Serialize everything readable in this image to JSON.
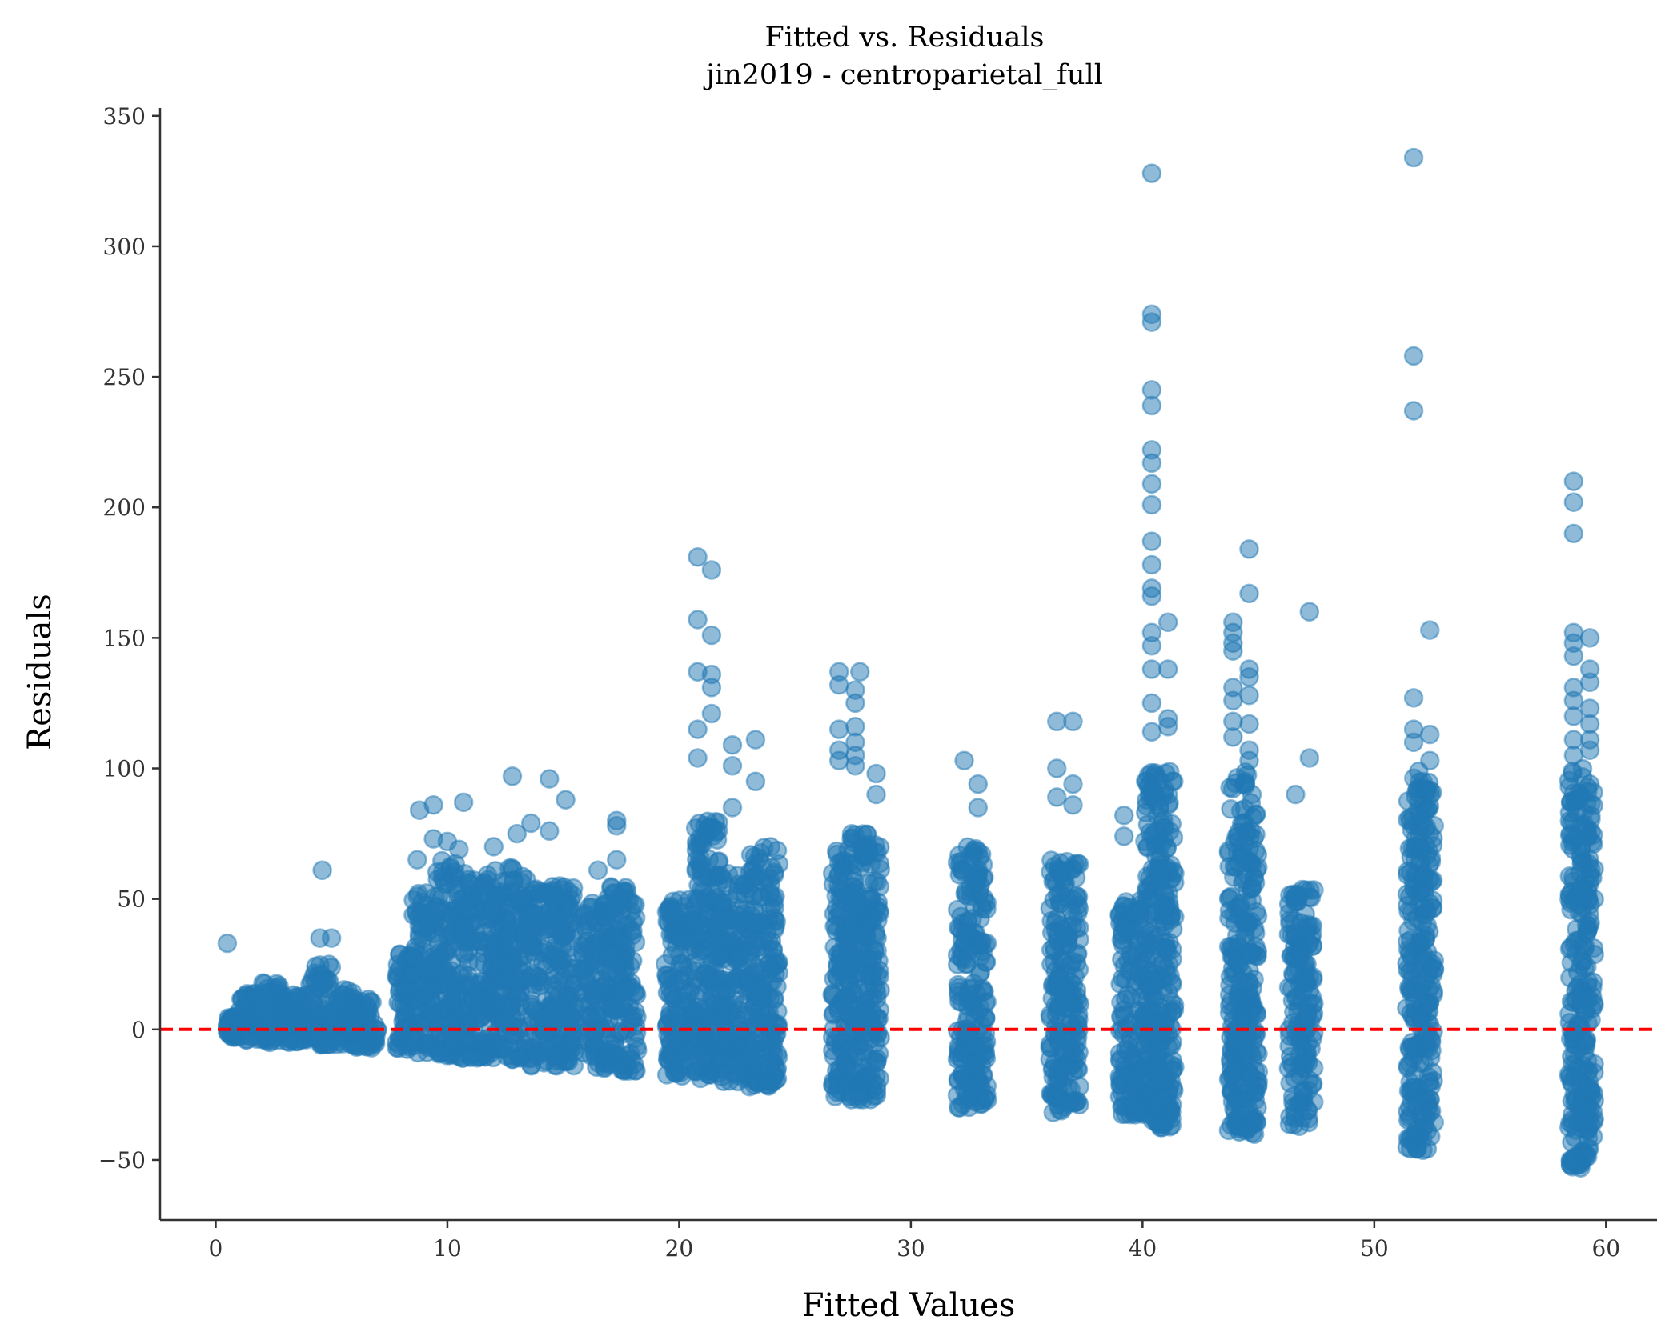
{
  "chart_data": {
    "type": "scatter",
    "title": "Fitted vs. Residuals",
    "subtitle": "jin2019 - centroparietal_full",
    "xlabel": "Fitted Values",
    "ylabel": "Residuals",
    "xlim": [
      -2.4,
      62.2
    ],
    "ylim": [
      -73,
      353
    ],
    "xticks": [
      0,
      10,
      20,
      30,
      40,
      50,
      60
    ],
    "yticks": [
      -50,
      0,
      50,
      100,
      150,
      200,
      250,
      300,
      350
    ],
    "xtick_labels": [
      "0",
      "10",
      "20",
      "30",
      "40",
      "50",
      "60"
    ],
    "ytick_labels": [
      "−50",
      "0",
      "50",
      "100",
      "150",
      "200",
      "250",
      "300",
      "350"
    ],
    "grid": false,
    "reference_line": {
      "y": 0,
      "color": "#ff0000",
      "style": "dashed"
    },
    "point_color": "#1f77b4",
    "point_alpha": 0.5,
    "clusters": [
      {
        "x": [
          0.5,
          1.0
        ],
        "ylow": -3,
        "yhigh": 5
      },
      {
        "x": [
          1.0,
          2.0
        ],
        "ylow": -4,
        "yhigh": 14
      },
      {
        "x": [
          2.0,
          3.0
        ],
        "ylow": -5,
        "yhigh": 18
      },
      {
        "x": [
          3.0,
          4.0
        ],
        "ylow": -5,
        "yhigh": 14
      },
      {
        "x": [
          4.0,
          5.0
        ],
        "ylow": -6,
        "yhigh": 25
      },
      {
        "x": [
          5.0,
          6.0
        ],
        "ylow": -6,
        "yhigh": 16
      },
      {
        "x": [
          6.0,
          7.0
        ],
        "ylow": -7,
        "yhigh": 13
      },
      {
        "x": [
          7.8,
          8.5
        ],
        "ylow": -8,
        "yhigh": 30
      },
      {
        "x": [
          8.5,
          9.5
        ],
        "ylow": -9,
        "yhigh": 55
      },
      {
        "x": [
          9.5,
          10.5
        ],
        "ylow": -10,
        "yhigh": 65
      },
      {
        "x": [
          10.5,
          12.0
        ],
        "ylow": -11,
        "yhigh": 60
      },
      {
        "x": [
          12.0,
          13.5
        ],
        "ylow": -12,
        "yhigh": 62
      },
      {
        "x": [
          13.5,
          15.5
        ],
        "ylow": -14,
        "yhigh": 55
      },
      {
        "x": [
          15.8,
          16.8
        ],
        "ylow": -15,
        "yhigh": 50
      },
      {
        "x": [
          16.8,
          18.2
        ],
        "ylow": -16,
        "yhigh": 55
      },
      {
        "x": [
          19.4,
          20.6
        ],
        "ylow": -18,
        "yhigh": 50
      },
      {
        "x": [
          20.6,
          21.8
        ],
        "ylow": -19,
        "yhigh": 80
      },
      {
        "x": [
          21.8,
          23.0
        ],
        "ylow": -20,
        "yhigh": 60
      },
      {
        "x": [
          23.0,
          24.3
        ],
        "ylow": -22,
        "yhigh": 70
      },
      {
        "x": [
          26.6,
          27.4
        ],
        "ylow": -26,
        "yhigh": 70
      },
      {
        "x": [
          27.4,
          28.7
        ],
        "ylow": -27,
        "yhigh": 75
      },
      {
        "x": [
          32.0,
          33.3
        ],
        "ylow": -30,
        "yhigh": 70
      },
      {
        "x": [
          36.0,
          37.3
        ],
        "ylow": -32,
        "yhigh": 65
      },
      {
        "x": [
          39.0,
          40.1
        ],
        "ylow": -33,
        "yhigh": 50
      },
      {
        "x": [
          40.1,
          41.4
        ],
        "ylow": -38,
        "yhigh": 100
      },
      {
        "x": [
          43.7,
          44.6
        ],
        "ylow": -40,
        "yhigh": 100
      },
      {
        "x": [
          44.6,
          45.0
        ],
        "ylow": -41,
        "yhigh": 90
      },
      {
        "x": [
          46.3,
          47.4
        ],
        "ylow": -38,
        "yhigh": 55
      },
      {
        "x": [
          51.4,
          52.0
        ],
        "ylow": -46,
        "yhigh": 100
      },
      {
        "x": [
          52.0,
          52.6
        ],
        "ylow": -47,
        "yhigh": 95
      },
      {
        "x": [
          58.4,
          59.0
        ],
        "ylow": -53,
        "yhigh": 100
      },
      {
        "x": [
          59.0,
          59.5
        ],
        "ylow": -50,
        "yhigh": 95
      }
    ],
    "outliers": [
      [
        0.5,
        33
      ],
      [
        4.5,
        35
      ],
      [
        4.6,
        61
      ],
      [
        5.0,
        35
      ],
      [
        8.7,
        65
      ],
      [
        8.8,
        84
      ],
      [
        9.4,
        86
      ],
      [
        9.4,
        73
      ],
      [
        10.0,
        72
      ],
      [
        10.7,
        87
      ],
      [
        10.5,
        69
      ],
      [
        12.0,
        70
      ],
      [
        12.8,
        97
      ],
      [
        13.0,
        75
      ],
      [
        13.6,
        79
      ],
      [
        14.4,
        96
      ],
      [
        14.4,
        76
      ],
      [
        15.1,
        88
      ],
      [
        16.5,
        61
      ],
      [
        17.3,
        80
      ],
      [
        17.3,
        78
      ],
      [
        17.3,
        65
      ],
      [
        20.8,
        181
      ],
      [
        20.8,
        157
      ],
      [
        20.8,
        137
      ],
      [
        20.8,
        115
      ],
      [
        20.8,
        104
      ],
      [
        21.4,
        176
      ],
      [
        21.4,
        151
      ],
      [
        21.4,
        136
      ],
      [
        21.4,
        131
      ],
      [
        21.4,
        121
      ],
      [
        22.3,
        109
      ],
      [
        22.3,
        101
      ],
      [
        22.3,
        85
      ],
      [
        23.3,
        111
      ],
      [
        23.3,
        95
      ],
      [
        24.0,
        62
      ],
      [
        26.9,
        137
      ],
      [
        26.9,
        132
      ],
      [
        26.9,
        115
      ],
      [
        26.9,
        107
      ],
      [
        26.9,
        103
      ],
      [
        27.6,
        130
      ],
      [
        27.6,
        125
      ],
      [
        27.6,
        116
      ],
      [
        27.6,
        110
      ],
      [
        27.6,
        105
      ],
      [
        27.6,
        101
      ],
      [
        27.8,
        137
      ],
      [
        28.5,
        98
      ],
      [
        28.5,
        90
      ],
      [
        32.3,
        103
      ],
      [
        32.9,
        94
      ],
      [
        32.9,
        85
      ],
      [
        36.3,
        118
      ],
      [
        36.3,
        100
      ],
      [
        36.3,
        89
      ],
      [
        37.0,
        118
      ],
      [
        37.0,
        94
      ],
      [
        37.0,
        86
      ],
      [
        39.2,
        82
      ],
      [
        39.2,
        74
      ],
      [
        40.4,
        328
      ],
      [
        40.4,
        274
      ],
      [
        40.4,
        271
      ],
      [
        40.4,
        245
      ],
      [
        40.4,
        239
      ],
      [
        40.4,
        222
      ],
      [
        40.4,
        217
      ],
      [
        40.4,
        209
      ],
      [
        40.4,
        201
      ],
      [
        40.4,
        187
      ],
      [
        40.4,
        178
      ],
      [
        40.4,
        169
      ],
      [
        40.4,
        166
      ],
      [
        40.4,
        152
      ],
      [
        40.4,
        147
      ],
      [
        40.4,
        138
      ],
      [
        40.4,
        125
      ],
      [
        40.4,
        114
      ],
      [
        41.1,
        156
      ],
      [
        41.1,
        138
      ],
      [
        41.1,
        119
      ],
      [
        41.1,
        116
      ],
      [
        41.1,
        90
      ],
      [
        41.1,
        86
      ],
      [
        43.9,
        156
      ],
      [
        43.9,
        152
      ],
      [
        43.9,
        148
      ],
      [
        43.9,
        145
      ],
      [
        43.9,
        131
      ],
      [
        43.9,
        126
      ],
      [
        43.9,
        118
      ],
      [
        43.9,
        112
      ],
      [
        44.6,
        184
      ],
      [
        44.6,
        167
      ],
      [
        44.6,
        138
      ],
      [
        44.6,
        135
      ],
      [
        44.6,
        128
      ],
      [
        44.6,
        117
      ],
      [
        44.6,
        107
      ],
      [
        44.6,
        103
      ],
      [
        46.6,
        90
      ],
      [
        47.2,
        160
      ],
      [
        47.2,
        104
      ],
      [
        51.7,
        334
      ],
      [
        51.7,
        258
      ],
      [
        51.7,
        237
      ],
      [
        51.7,
        127
      ],
      [
        51.7,
        115
      ],
      [
        51.7,
        110
      ],
      [
        52.4,
        153
      ],
      [
        52.4,
        113
      ],
      [
        52.4,
        103
      ],
      [
        58.6,
        210
      ],
      [
        58.6,
        202
      ],
      [
        58.6,
        190
      ],
      [
        58.6,
        152
      ],
      [
        58.6,
        148
      ],
      [
        58.6,
        143
      ],
      [
        58.6,
        131
      ],
      [
        58.6,
        126
      ],
      [
        58.6,
        120
      ],
      [
        58.6,
        111
      ],
      [
        58.6,
        105
      ],
      [
        59.3,
        150
      ],
      [
        59.3,
        138
      ],
      [
        59.3,
        133
      ],
      [
        59.3,
        123
      ],
      [
        59.3,
        117
      ],
      [
        59.3,
        111
      ],
      [
        59.3,
        107
      ],
      [
        59.3,
        94
      ]
    ]
  }
}
